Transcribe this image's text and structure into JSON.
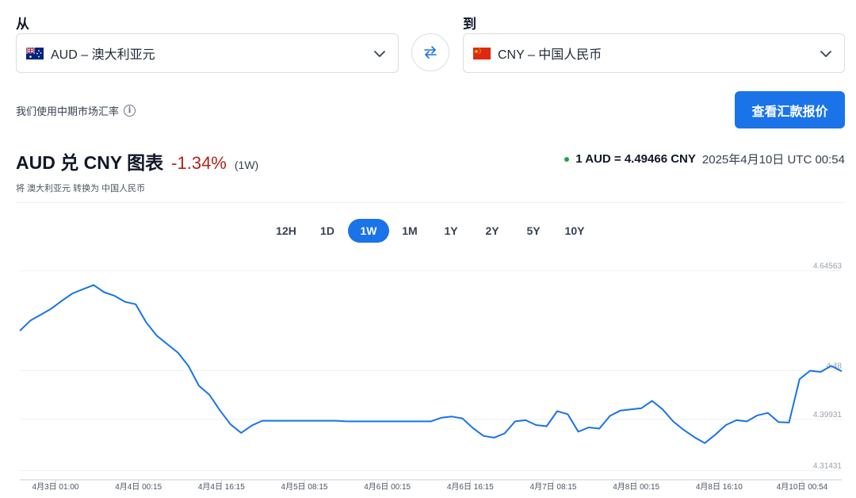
{
  "from": {
    "label": "从",
    "code": "AUD",
    "name": "AUD – 澳大利亚元",
    "flag": "australia-flag-icon"
  },
  "to": {
    "label": "到",
    "code": "CNY",
    "name": "CNY – 中国人民币",
    "flag": "china-flag-icon"
  },
  "swap_icon": "swap-arrows-icon",
  "note": "我们使用中期市场汇率",
  "cta_label": "查看汇款报价",
  "chart_header": {
    "title": "AUD 兑 CNY 图表",
    "change": "-1.34%",
    "period": "(1W)",
    "subtitle": "将 澳大利亚元 转换为 中国人民币",
    "rate": "1 AUD = 4.49466 CNY",
    "timestamp": "2025年4月10日 UTC 00:54"
  },
  "colors": {
    "accent": "#1a73e8",
    "negative": "#b42318",
    "live_dot": "#22a447",
    "line": "#1a73e8"
  },
  "tabs": [
    {
      "label": "12H",
      "active": false
    },
    {
      "label": "1D",
      "active": false
    },
    {
      "label": "1W",
      "active": true
    },
    {
      "label": "1M",
      "active": false
    },
    {
      "label": "1Y",
      "active": false
    },
    {
      "label": "2Y",
      "active": false
    },
    {
      "label": "5Y",
      "active": false
    },
    {
      "label": "10Y",
      "active": false
    }
  ],
  "chart_data": {
    "type": "line",
    "title": "",
    "xlabel": "",
    "ylabel": "",
    "y_ticks": [
      "4.64563",
      "4.48",
      "4.39931",
      "4.31431"
    ],
    "y_tick_values": [
      4.64563,
      4.48,
      4.39931,
      4.31431
    ],
    "ylim": [
      4.2993,
      4.6606
    ],
    "x_ticks": [
      "4月3日 01:00",
      "4月4日 00:15",
      "4月4日 16:15",
      "4月5日 08:15",
      "4月6日 00:15",
      "4月6日 16:15",
      "4月7日 08:15",
      "4月8日 00:15",
      "4月8日 16:10",
      "4月10日 00:54"
    ],
    "grid": true,
    "series": [
      {
        "values": [
          4.546,
          4.563,
          4.573,
          4.583,
          4.596,
          4.608,
          4.615,
          4.622,
          4.61,
          4.604,
          4.594,
          4.59,
          4.56,
          4.538,
          4.524,
          4.51,
          4.488,
          4.455,
          4.44,
          4.414,
          4.391,
          4.377,
          4.389,
          4.397,
          4.397,
          4.397,
          4.397,
          4.397,
          4.397,
          4.397,
          4.397,
          4.396,
          4.396,
          4.396,
          4.396,
          4.396,
          4.396,
          4.396,
          4.396,
          4.396,
          4.402,
          4.404,
          4.401,
          4.385,
          4.372,
          4.369,
          4.376,
          4.396,
          4.398,
          4.39,
          4.388,
          4.413,
          4.408,
          4.379,
          4.386,
          4.384,
          4.405,
          4.414,
          4.416,
          4.418,
          4.43,
          4.416,
          4.396,
          4.382,
          4.37,
          4.36,
          4.374,
          4.39,
          4.398,
          4.396,
          4.406,
          4.41,
          4.395,
          4.394,
          4.466,
          4.48,
          4.478,
          4.488,
          4.479
        ]
      }
    ]
  }
}
